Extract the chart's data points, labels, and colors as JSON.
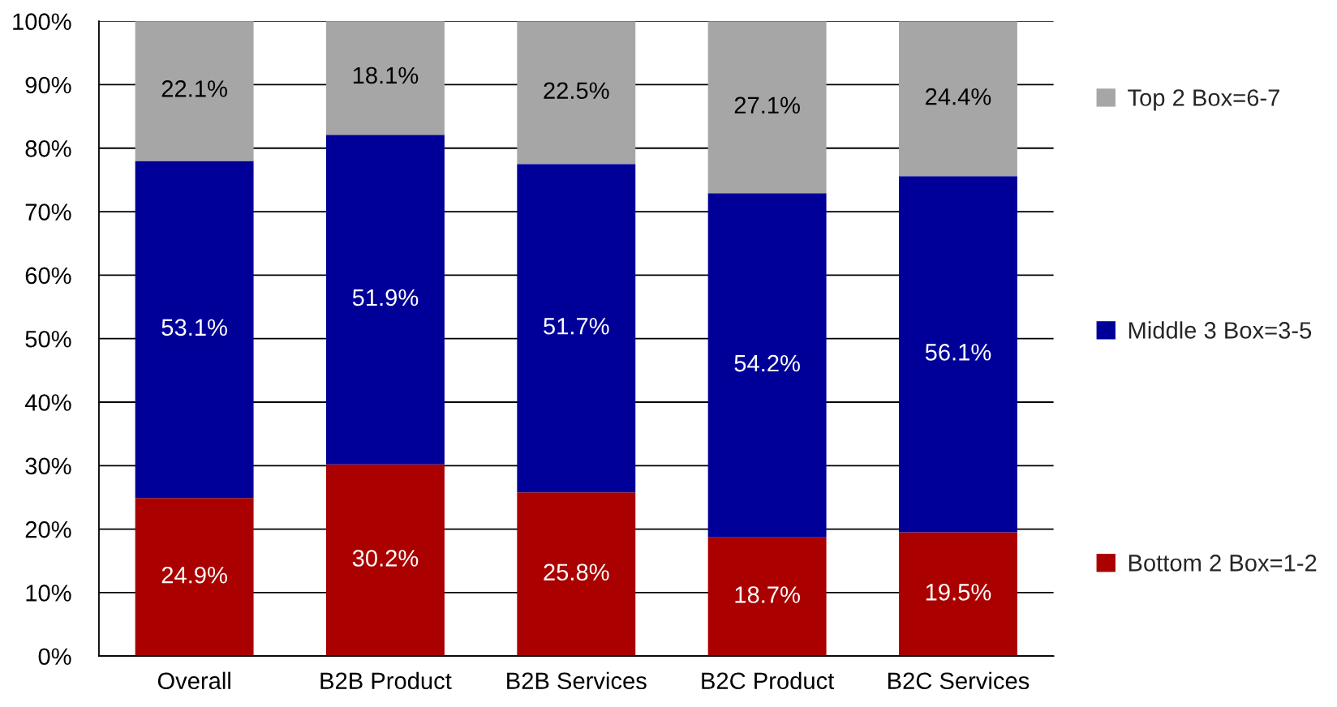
{
  "chart_data": {
    "type": "bar",
    "stacked": true,
    "categories": [
      "Overall",
      "B2B Product",
      "B2B Services",
      "B2C Product",
      "B2C Services"
    ],
    "series": [
      {
        "name": "Bottom 2 Box=1-2",
        "color": "#aa0000",
        "values": [
          24.9,
          30.2,
          25.8,
          18.7,
          19.5
        ],
        "value_labels": [
          "24.9%",
          "30.2%",
          "25.8%",
          "18.7%",
          "19.5%"
        ]
      },
      {
        "name": "Middle 3 Box=3-5",
        "color": "#000099",
        "values": [
          53.1,
          51.9,
          51.7,
          54.2,
          56.1
        ],
        "value_labels": [
          "53.1%",
          "51.9%",
          "51.7%",
          "54.2%",
          "56.1%"
        ]
      },
      {
        "name": "Top 2 Box=6-7",
        "color": "#a6a6a6",
        "values": [
          22.1,
          18.1,
          22.5,
          27.1,
          24.4
        ],
        "value_labels": [
          "22.1%",
          "18.1%",
          "22.5%",
          "27.1%",
          "24.4%"
        ]
      }
    ],
    "ylim": [
      0,
      100
    ],
    "yticks": [
      {
        "value": 0,
        "label": "0%"
      },
      {
        "value": 10,
        "label": "10%"
      },
      {
        "value": 20,
        "label": "20%"
      },
      {
        "value": 30,
        "label": "30%"
      },
      {
        "value": 40,
        "label": "40%"
      },
      {
        "value": 50,
        "label": "50%"
      },
      {
        "value": 60,
        "label": "60%"
      },
      {
        "value": 70,
        "label": "70%"
      },
      {
        "value": 80,
        "label": "80%"
      },
      {
        "value": 90,
        "label": "90%"
      },
      {
        "value": 100,
        "label": "100%"
      }
    ],
    "grid": "y",
    "legend": "right"
  }
}
